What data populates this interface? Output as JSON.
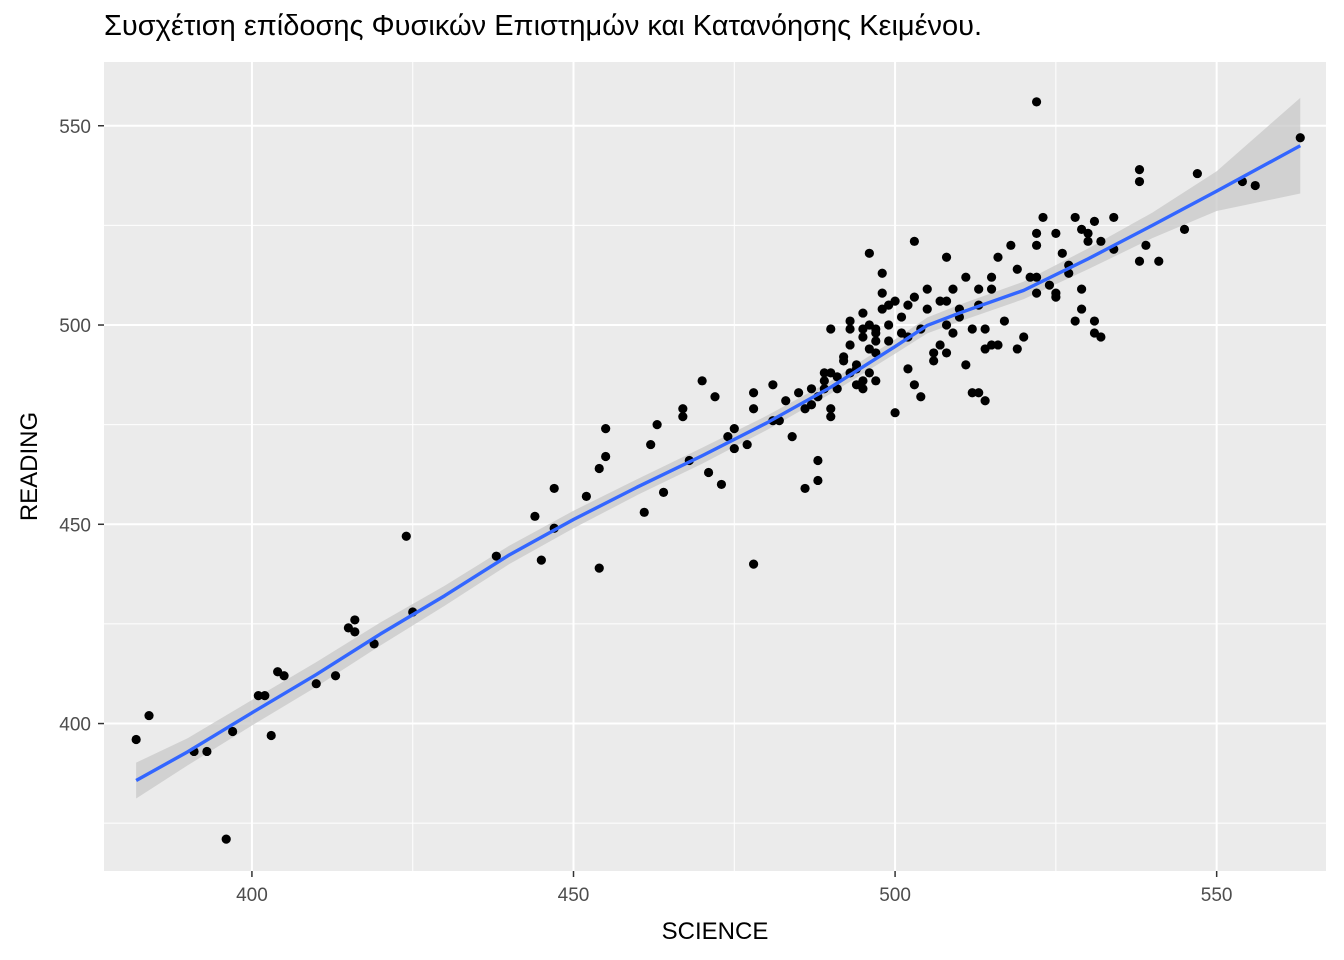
{
  "chart_data": {
    "type": "scatter",
    "title": "Συσχέτιση επίδοσης Φυσικών Επιστημών και Κατανόησης Κειμένου.",
    "xlabel": "SCIENCE",
    "ylabel": "READING",
    "xlim": [
      377,
      567
    ],
    "ylim": [
      363,
      566
    ],
    "x_ticks": [
      400,
      450,
      500,
      550
    ],
    "y_ticks": [
      400,
      450,
      500,
      550
    ],
    "grid": true,
    "background": "#ebebeb",
    "point_color": "#000000",
    "smooth_color": "#3366ff",
    "band_color": "#c8c8c8",
    "points": [
      [
        382,
        396
      ],
      [
        384,
        402
      ],
      [
        391,
        393
      ],
      [
        393,
        393
      ],
      [
        396,
        371
      ],
      [
        397,
        398
      ],
      [
        401,
        407
      ],
      [
        402,
        407
      ],
      [
        403,
        397
      ],
      [
        404,
        413
      ],
      [
        405,
        412
      ],
      [
        410,
        410
      ],
      [
        413,
        412
      ],
      [
        415,
        424
      ],
      [
        416,
        426
      ],
      [
        416,
        423
      ],
      [
        419,
        420
      ],
      [
        424,
        447
      ],
      [
        425,
        428
      ],
      [
        438,
        442
      ],
      [
        444,
        452
      ],
      [
        445,
        441
      ],
      [
        447,
        459
      ],
      [
        447,
        449
      ],
      [
        452,
        457
      ],
      [
        454,
        464
      ],
      [
        454,
        439
      ],
      [
        455,
        467
      ],
      [
        455,
        474
      ],
      [
        461,
        453
      ],
      [
        462,
        470
      ],
      [
        463,
        475
      ],
      [
        464,
        458
      ],
      [
        467,
        479
      ],
      [
        467,
        477
      ],
      [
        468,
        466
      ],
      [
        470,
        486
      ],
      [
        471,
        463
      ],
      [
        472,
        482
      ],
      [
        473,
        460
      ],
      [
        474,
        472
      ],
      [
        475,
        469
      ],
      [
        475,
        474
      ],
      [
        477,
        470
      ],
      [
        478,
        483
      ],
      [
        478,
        479
      ],
      [
        478,
        440
      ],
      [
        481,
        485
      ],
      [
        481,
        476
      ],
      [
        482,
        476
      ],
      [
        483,
        481
      ],
      [
        484,
        472
      ],
      [
        485,
        483
      ],
      [
        486,
        459
      ],
      [
        486,
        479
      ],
      [
        487,
        484
      ],
      [
        487,
        480
      ],
      [
        488,
        461
      ],
      [
        488,
        466
      ],
      [
        488,
        482
      ],
      [
        489,
        484
      ],
      [
        489,
        488
      ],
      [
        489,
        486
      ],
      [
        490,
        499
      ],
      [
        490,
        488
      ],
      [
        490,
        479
      ],
      [
        490,
        477
      ],
      [
        491,
        484
      ],
      [
        491,
        487
      ],
      [
        492,
        492
      ],
      [
        492,
        491
      ],
      [
        493,
        495
      ],
      [
        493,
        501
      ],
      [
        493,
        499
      ],
      [
        493,
        488
      ],
      [
        494,
        485
      ],
      [
        494,
        489
      ],
      [
        494,
        490
      ],
      [
        495,
        484
      ],
      [
        495,
        499
      ],
      [
        495,
        503
      ],
      [
        495,
        497
      ],
      [
        495,
        486
      ],
      [
        496,
        518
      ],
      [
        496,
        494
      ],
      [
        496,
        500
      ],
      [
        496,
        488
      ],
      [
        497,
        493
      ],
      [
        497,
        499
      ],
      [
        497,
        496
      ],
      [
        497,
        486
      ],
      [
        497,
        498
      ],
      [
        498,
        513
      ],
      [
        498,
        508
      ],
      [
        498,
        504
      ],
      [
        499,
        505
      ],
      [
        499,
        500
      ],
      [
        499,
        496
      ],
      [
        500,
        478
      ],
      [
        500,
        506
      ],
      [
        501,
        498
      ],
      [
        501,
        502
      ],
      [
        502,
        505
      ],
      [
        502,
        489
      ],
      [
        502,
        497
      ],
      [
        503,
        521
      ],
      [
        503,
        507
      ],
      [
        503,
        485
      ],
      [
        504,
        482
      ],
      [
        504,
        499
      ],
      [
        505,
        509
      ],
      [
        505,
        504
      ],
      [
        506,
        493
      ],
      [
        506,
        491
      ],
      [
        507,
        506
      ],
      [
        507,
        495
      ],
      [
        508,
        517
      ],
      [
        508,
        506
      ],
      [
        508,
        493
      ],
      [
        508,
        500
      ],
      [
        509,
        509
      ],
      [
        509,
        498
      ],
      [
        510,
        504
      ],
      [
        510,
        502
      ],
      [
        511,
        490
      ],
      [
        511,
        512
      ],
      [
        512,
        499
      ],
      [
        512,
        483
      ],
      [
        513,
        509
      ],
      [
        513,
        505
      ],
      [
        513,
        483
      ],
      [
        514,
        499
      ],
      [
        514,
        494
      ],
      [
        514,
        481
      ],
      [
        515,
        512
      ],
      [
        515,
        509
      ],
      [
        515,
        495
      ],
      [
        516,
        517
      ],
      [
        516,
        495
      ],
      [
        517,
        501
      ],
      [
        518,
        520
      ],
      [
        519,
        514
      ],
      [
        519,
        494
      ],
      [
        520,
        497
      ],
      [
        521,
        512
      ],
      [
        522,
        556
      ],
      [
        522,
        523
      ],
      [
        522,
        520
      ],
      [
        522,
        512
      ],
      [
        522,
        508
      ],
      [
        523,
        527
      ],
      [
        524,
        510
      ],
      [
        525,
        508
      ],
      [
        525,
        523
      ],
      [
        525,
        507
      ],
      [
        526,
        518
      ],
      [
        527,
        515
      ],
      [
        527,
        513
      ],
      [
        528,
        527
      ],
      [
        528,
        501
      ],
      [
        529,
        509
      ],
      [
        529,
        524
      ],
      [
        529,
        504
      ],
      [
        530,
        523
      ],
      [
        530,
        521
      ],
      [
        531,
        526
      ],
      [
        531,
        501
      ],
      [
        531,
        498
      ],
      [
        532,
        497
      ],
      [
        532,
        521
      ],
      [
        534,
        527
      ],
      [
        534,
        519
      ],
      [
        538,
        539
      ],
      [
        538,
        536
      ],
      [
        538,
        516
      ],
      [
        539,
        520
      ],
      [
        541,
        516
      ],
      [
        545,
        524
      ],
      [
        547,
        538
      ],
      [
        554,
        536
      ],
      [
        556,
        535
      ],
      [
        563,
        547
      ]
    ],
    "smooth": [
      [
        382,
        385.7
      ],
      [
        390,
        392.9
      ],
      [
        400,
        402.7
      ],
      [
        410,
        412.3
      ],
      [
        420,
        422.5
      ],
      [
        430,
        432.1
      ],
      [
        440,
        442.3
      ],
      [
        450,
        451.2
      ],
      [
        460,
        459.4
      ],
      [
        470,
        467.2
      ],
      [
        480,
        475.4
      ],
      [
        490,
        484.4
      ],
      [
        500,
        494.6
      ],
      [
        505,
        499.9
      ],
      [
        510,
        503.0
      ],
      [
        520,
        508.7
      ],
      [
        530,
        516.6
      ],
      [
        540,
        525.0
      ],
      [
        550,
        533.6
      ],
      [
        563,
        545.0
      ]
    ],
    "band": [
      [
        382,
        381.2,
        390.2
      ],
      [
        390,
        389.5,
        396.3
      ],
      [
        400,
        399.5,
        405.9
      ],
      [
        410,
        409.2,
        415.4
      ],
      [
        420,
        419.6,
        425.4
      ],
      [
        430,
        429.6,
        434.6
      ],
      [
        440,
        440.0,
        444.6
      ],
      [
        450,
        449.0,
        453.4
      ],
      [
        460,
        457.4,
        461.4
      ],
      [
        470,
        465.2,
        469.2
      ],
      [
        480,
        473.6,
        477.2
      ],
      [
        490,
        482.8,
        486.0
      ],
      [
        500,
        492.8,
        496.4
      ],
      [
        505,
        497.9,
        501.9
      ],
      [
        510,
        500.9,
        505.1
      ],
      [
        520,
        506.5,
        510.9
      ],
      [
        530,
        514.0,
        519.2
      ],
      [
        540,
        521.8,
        528.2
      ],
      [
        550,
        528.6,
        538.6
      ],
      [
        563,
        533.0,
        557.0
      ]
    ]
  }
}
